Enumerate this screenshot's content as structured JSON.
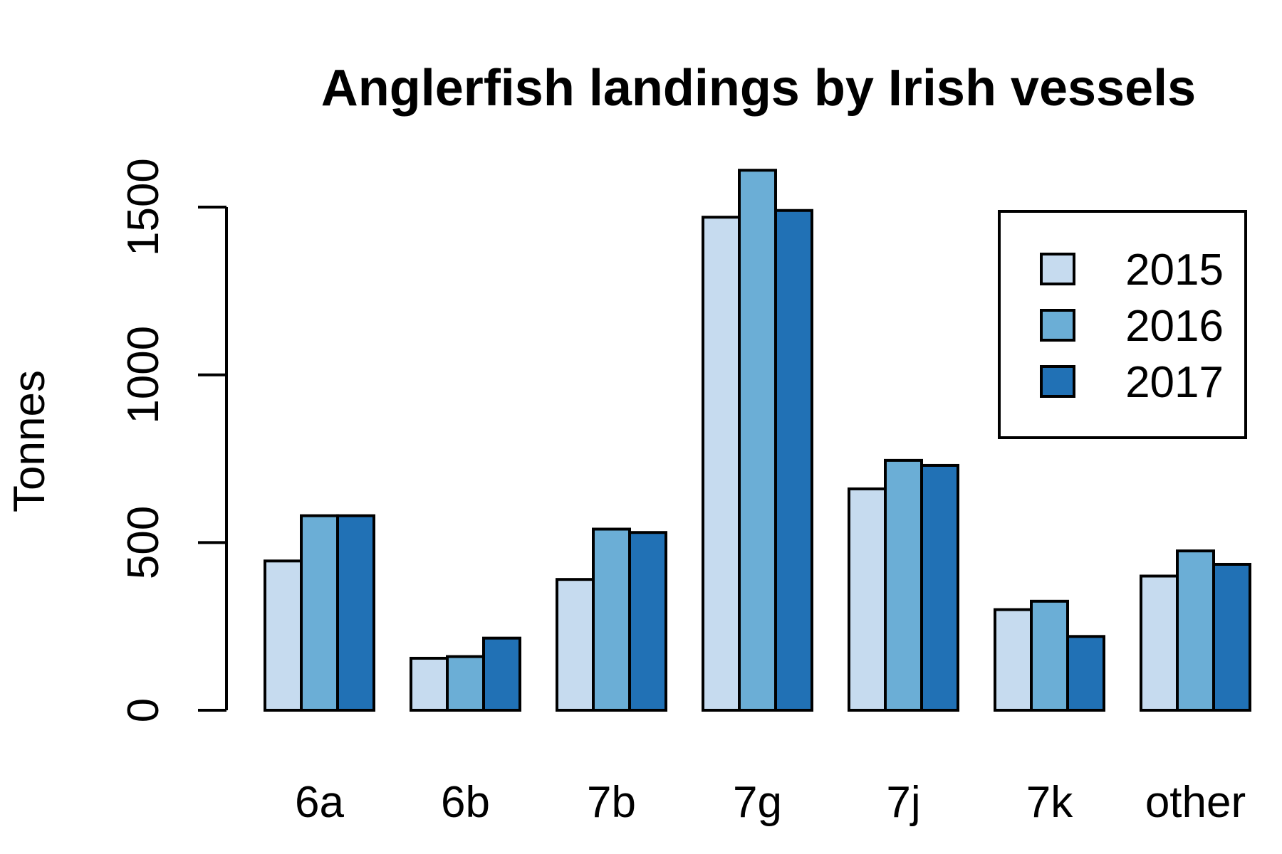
{
  "chart_data": {
    "type": "bar",
    "title": "Anglerfish landings by Irish vessels",
    "xlabel": "",
    "ylabel": "Tonnes",
    "ylim": [
      0,
      1600
    ],
    "yticks": [
      "0",
      "500",
      "1000",
      "1500"
    ],
    "categories": [
      "6a",
      "6b",
      "7b",
      "7g",
      "7j",
      "7k",
      "other"
    ],
    "series": [
      {
        "name": "2015",
        "color": "#c6dbef",
        "values": [
          445,
          155,
          390,
          1470,
          660,
          300,
          400
        ]
      },
      {
        "name": "2016",
        "color": "#6baed6",
        "values": [
          580,
          160,
          540,
          1610,
          745,
          325,
          475
        ]
      },
      {
        "name": "2017",
        "color": "#2171b5",
        "values": [
          580,
          215,
          530,
          1490,
          730,
          220,
          435
        ]
      }
    ],
    "grid": false,
    "legend": {
      "position": "top-right",
      "entries": [
        "2015",
        "2016",
        "2017"
      ]
    }
  }
}
